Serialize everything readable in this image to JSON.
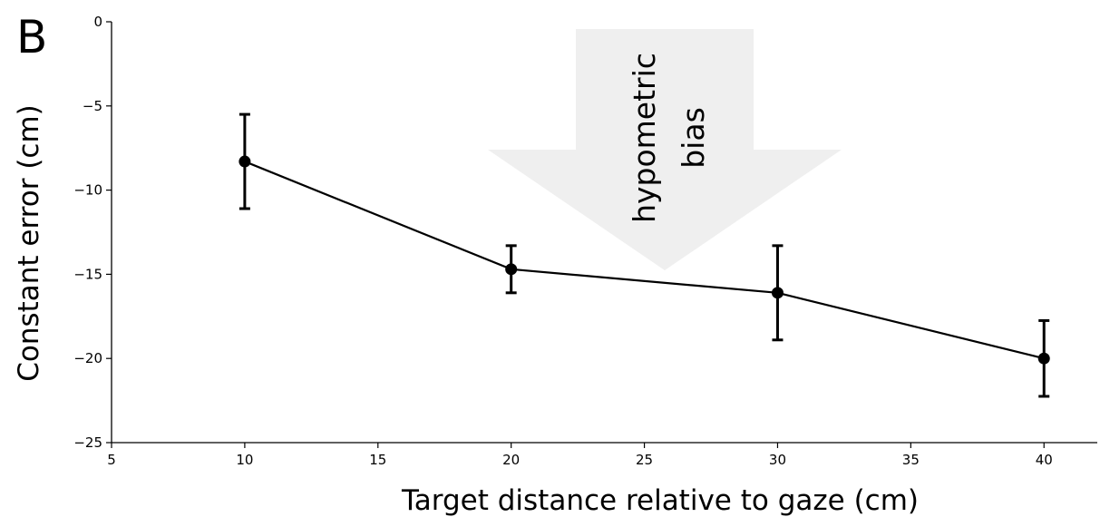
{
  "chart_data": {
    "type": "line",
    "panel_label": "B",
    "xlabel": "Target distance relative to gaze (cm)",
    "ylabel": "Constant error (cm)",
    "xlim": [
      5,
      42
    ],
    "ylim": [
      -25,
      0
    ],
    "xticks": [
      5,
      10,
      15,
      20,
      25,
      30,
      35,
      40
    ],
    "yticks": [
      0,
      -5,
      -10,
      -15,
      -20,
      -25
    ],
    "xtick_labels": [
      "5",
      "10",
      "15",
      "20",
      "25",
      "30",
      "35",
      "40"
    ],
    "ytick_labels": [
      "0",
      "−5",
      "−10",
      "−15",
      "−20",
      "−25"
    ],
    "grid": false,
    "series": [
      {
        "x": [
          10,
          20,
          30,
          40
        ],
        "y": [
          -8.3,
          -14.7,
          -16.1,
          -20.0
        ],
        "error": [
          2.8,
          1.4,
          2.8,
          2.25
        ],
        "color": "#000000"
      }
    ],
    "annotation": {
      "lines": [
        "hypometric",
        "bias"
      ],
      "arrow_color": "#efefef",
      "arrow_direction": "down"
    }
  }
}
